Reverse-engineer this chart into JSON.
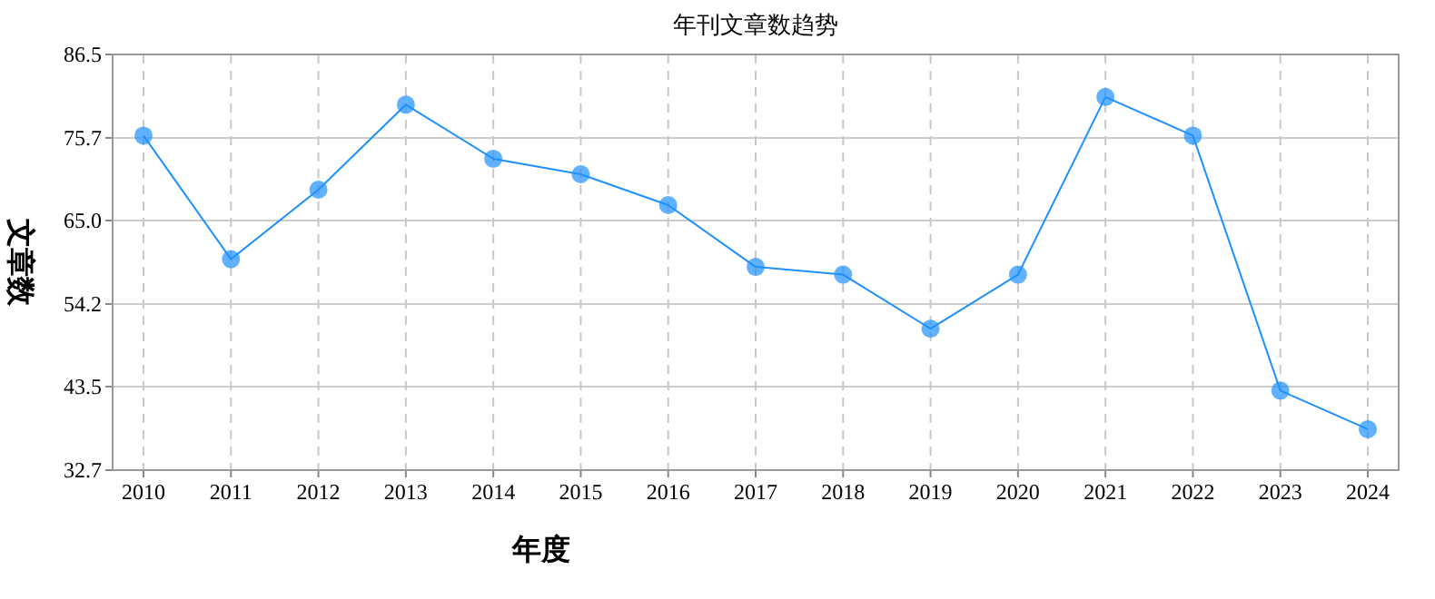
{
  "chart_data": {
    "type": "line",
    "title": "年刊文章数趋势",
    "xlabel": "年度",
    "ylabel": "文章数",
    "categories": [
      "2010",
      "2011",
      "2012",
      "2013",
      "2014",
      "2015",
      "2016",
      "2017",
      "2018",
      "2019",
      "2020",
      "2021",
      "2022",
      "2023",
      "2024"
    ],
    "series": [
      {
        "color": "#1e90ff",
        "values": [
          76,
          60,
          69,
          80,
          73,
          71,
          67,
          59,
          58,
          51,
          58,
          81,
          76,
          43,
          38
        ]
      }
    ],
    "ylim": [
      32.7,
      86.5
    ],
    "yticks": [
      32.7,
      43.5,
      54.2,
      {
        "value": 65,
        "label": "65.0"
      },
      75.7,
      86.5
    ],
    "grid": true,
    "marker": "circle",
    "line_style": "solid"
  }
}
